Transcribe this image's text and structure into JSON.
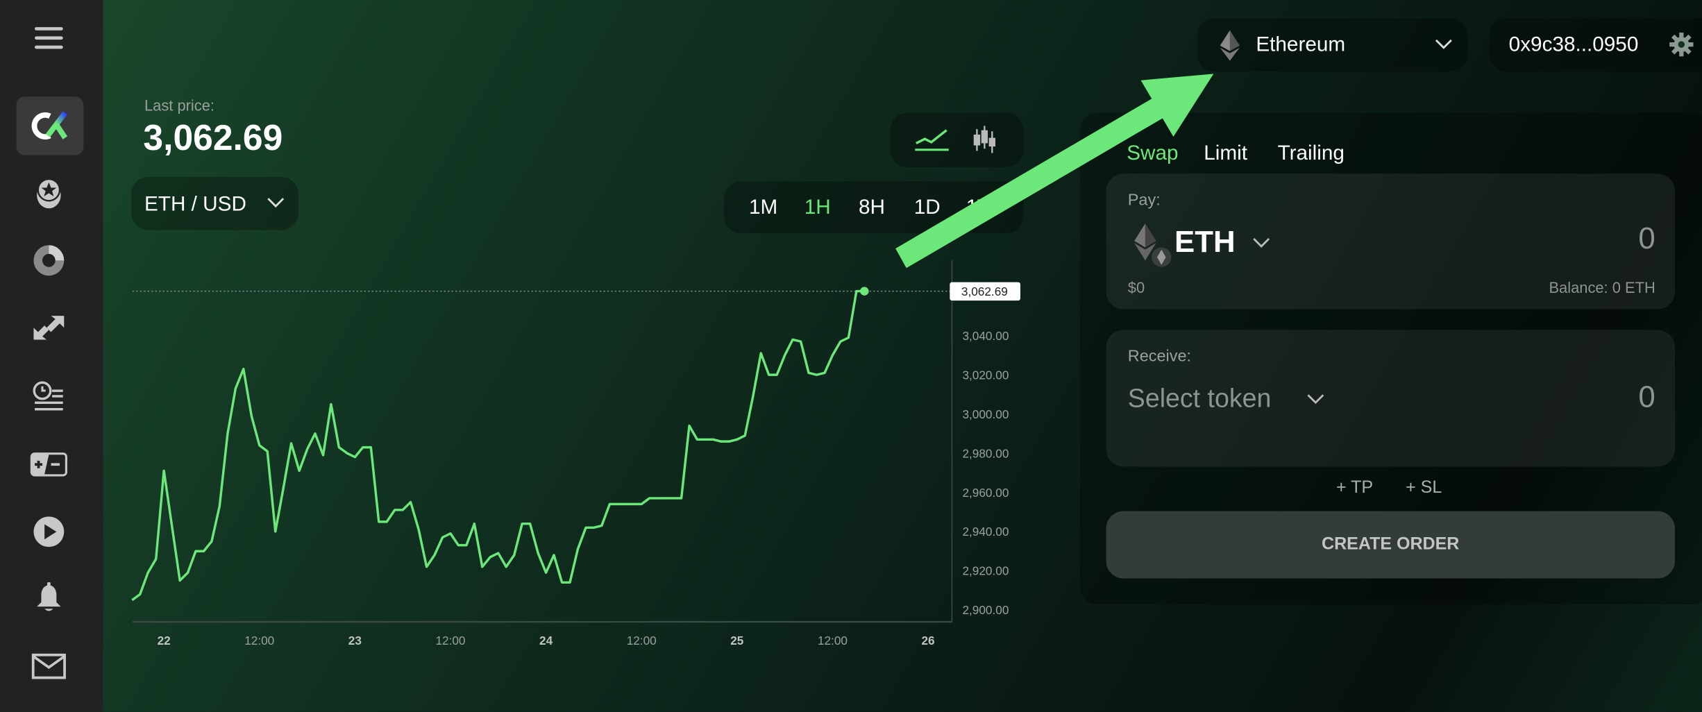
{
  "sidebar": {
    "items": [
      {
        "name": "menu-icon"
      },
      {
        "name": "logo-icon"
      },
      {
        "name": "star-coin-icon"
      },
      {
        "name": "donut-chart-icon"
      },
      {
        "name": "swap-arrows-icon"
      },
      {
        "name": "clock-list-icon"
      },
      {
        "name": "plus-minus-icon"
      },
      {
        "name": "play-icon"
      },
      {
        "name": "bell-icon"
      },
      {
        "name": "mail-icon"
      }
    ]
  },
  "header": {
    "network": "Ethereum",
    "wallet": "0x9c38...0950"
  },
  "market": {
    "last_price_label": "Last price:",
    "last_price": "3,062.69",
    "pair": "ETH / USD",
    "timeframes": [
      "1M",
      "1H",
      "8H",
      "1D",
      "1W"
    ],
    "active_timeframe": "1H",
    "chart_mode": "line"
  },
  "order": {
    "tabs": [
      "Swap",
      "Limit",
      "Trailing"
    ],
    "active_tab": "Swap",
    "pay": {
      "label": "Pay:",
      "token": "ETH",
      "amount": "0",
      "usd": "$0",
      "balance": "Balance: 0 ETH"
    },
    "receive": {
      "label": "Receive:",
      "token": "Select token",
      "amount": "0"
    },
    "tp": "+ TP",
    "sl": "+ SL",
    "create": "CREATE ORDER"
  },
  "colors": {
    "accent": "#6ce87a",
    "sidebar": "#222222",
    "button": "#343b3b"
  },
  "chart_data": {
    "type": "line",
    "current_price_label": "3,062.69",
    "ylim": [
      2895,
      3075
    ],
    "y_ticks": [
      "2,900.00",
      "2,920.00",
      "2,940.00",
      "2,960.00",
      "2,980.00",
      "3,000.00",
      "3,020.00",
      "3,040.00"
    ],
    "x_ticks": [
      "22",
      "12:00",
      "23",
      "12:00",
      "24",
      "12:00",
      "25",
      "12:00",
      "26"
    ],
    "series": [
      {
        "color": "#6ce87a",
        "points": [
          [
            "21 20:00",
            2905
          ],
          [
            "21 21:00",
            2908
          ],
          [
            "21 22:00",
            2919
          ],
          [
            "21 23:00",
            2926
          ],
          [
            "22 00:00",
            2971
          ],
          [
            "22 02:00",
            2915
          ],
          [
            "22 03:00",
            2919
          ],
          [
            "22 04:00",
            2930
          ],
          [
            "22 05:00",
            2930
          ],
          [
            "22 06:00",
            2935
          ],
          [
            "22 07:00",
            2953
          ],
          [
            "22 08:00",
            2990
          ],
          [
            "22 09:00",
            3013
          ],
          [
            "22 10:00",
            3023
          ],
          [
            "22 11:00",
            2999
          ],
          [
            "22 12:00",
            2984
          ],
          [
            "22 13:00",
            2981
          ],
          [
            "22 14:00",
            2940
          ],
          [
            "22 15:00",
            2962
          ],
          [
            "22 16:00",
            2985
          ],
          [
            "22 17:00",
            2971
          ],
          [
            "22 18:00",
            2982
          ],
          [
            "22 19:00",
            2990
          ],
          [
            "22 20:00",
            2979
          ],
          [
            "22 21:00",
            3005
          ],
          [
            "22 22:00",
            2983
          ],
          [
            "22 23:00",
            2980
          ],
          [
            "23 00:00",
            2978
          ],
          [
            "23 01:00",
            2983
          ],
          [
            "23 02:00",
            2983
          ],
          [
            "23 03:00",
            2945
          ],
          [
            "23 04:00",
            2945
          ],
          [
            "23 05:00",
            2951
          ],
          [
            "23 06:00",
            2951
          ],
          [
            "23 07:00",
            2955
          ],
          [
            "23 08:00",
            2941
          ],
          [
            "23 09:00",
            2922
          ],
          [
            "23 10:00",
            2928
          ],
          [
            "23 11:00",
            2937
          ],
          [
            "23 12:00",
            2939
          ],
          [
            "23 13:00",
            2933
          ],
          [
            "23 14:00",
            2933
          ],
          [
            "23 15:00",
            2944
          ],
          [
            "23 16:00",
            2922
          ],
          [
            "23 17:00",
            2927
          ],
          [
            "23 18:00",
            2929
          ],
          [
            "23 19:00",
            2922
          ],
          [
            "23 20:00",
            2928
          ],
          [
            "23 21:00",
            2944
          ],
          [
            "23 22:00",
            2944
          ],
          [
            "23 23:00",
            2929
          ],
          [
            "24 00:00",
            2919
          ],
          [
            "24 01:00",
            2928
          ],
          [
            "24 02:00",
            2914
          ],
          [
            "24 03:00",
            2914
          ],
          [
            "24 04:00",
            2931
          ],
          [
            "24 05:00",
            2942
          ],
          [
            "24 06:00",
            2942
          ],
          [
            "24 07:00",
            2943
          ],
          [
            "24 08:00",
            2954
          ],
          [
            "24 09:00",
            2954
          ],
          [
            "24 10:00",
            2954
          ],
          [
            "24 11:00",
            2954
          ],
          [
            "24 12:00",
            2954
          ],
          [
            "24 13:00",
            2957
          ],
          [
            "24 14:00",
            2957
          ],
          [
            "24 15:00",
            2957
          ],
          [
            "24 16:00",
            2957
          ],
          [
            "24 17:00",
            2957
          ],
          [
            "24 18:00",
            2994
          ],
          [
            "24 19:00",
            2987
          ],
          [
            "24 20:00",
            2987
          ],
          [
            "24 21:00",
            2987
          ],
          [
            "24 22:00",
            2986
          ],
          [
            "24 23:00",
            2986
          ],
          [
            "25 00:00",
            2987
          ],
          [
            "25 01:00",
            2989
          ],
          [
            "25 02:00",
            3009
          ],
          [
            "25 03:00",
            3031
          ],
          [
            "25 04:00",
            3020
          ],
          [
            "25 05:00",
            3020
          ],
          [
            "25 06:00",
            3030
          ],
          [
            "25 07:00",
            3038
          ],
          [
            "25 08:00",
            3037
          ],
          [
            "25 09:00",
            3021
          ],
          [
            "25 10:00",
            3020
          ],
          [
            "25 11:00",
            3021
          ],
          [
            "25 12:00",
            3030
          ],
          [
            "25 13:00",
            3037
          ],
          [
            "25 14:00",
            3039
          ],
          [
            "25 15:00",
            3062.69
          ],
          [
            "25 16:00",
            3062.69
          ]
        ]
      }
    ]
  }
}
